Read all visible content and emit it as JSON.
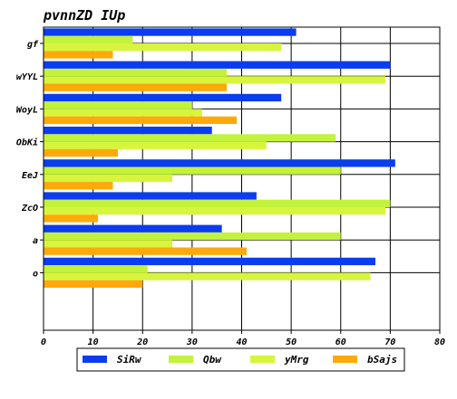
{
  "chart_data": {
    "type": "bar",
    "orientation": "horizontal",
    "title": "pvnnZD IUp",
    "xlabel": "",
    "ylabel": "",
    "xlim": [
      0,
      80
    ],
    "xticks": [
      0,
      10,
      20,
      30,
      40,
      50,
      60,
      70,
      80
    ],
    "grid": true,
    "legend_position": "bottom",
    "categories": [
      "gf",
      "wYYL",
      "WoyL",
      "ObKi",
      "EeJ",
      "ZcO",
      "a",
      "o"
    ],
    "series": [
      {
        "name": "SiRw",
        "color": "#0a3cf0",
        "values": [
          51,
          70,
          48,
          34,
          71,
          43,
          36,
          67
        ]
      },
      {
        "name": "Qbw",
        "color": "#c2f23c",
        "values": [
          18,
          37,
          30,
          59,
          60,
          70,
          60,
          21
        ]
      },
      {
        "name": "yMrg",
        "color": "#d6f53c",
        "values": [
          48,
          69,
          32,
          45,
          26,
          69,
          26,
          66
        ]
      },
      {
        "name": "bSajs",
        "color": "#ffa90a",
        "values": [
          14,
          37,
          39,
          15,
          14,
          11,
          41,
          20
        ]
      }
    ]
  }
}
